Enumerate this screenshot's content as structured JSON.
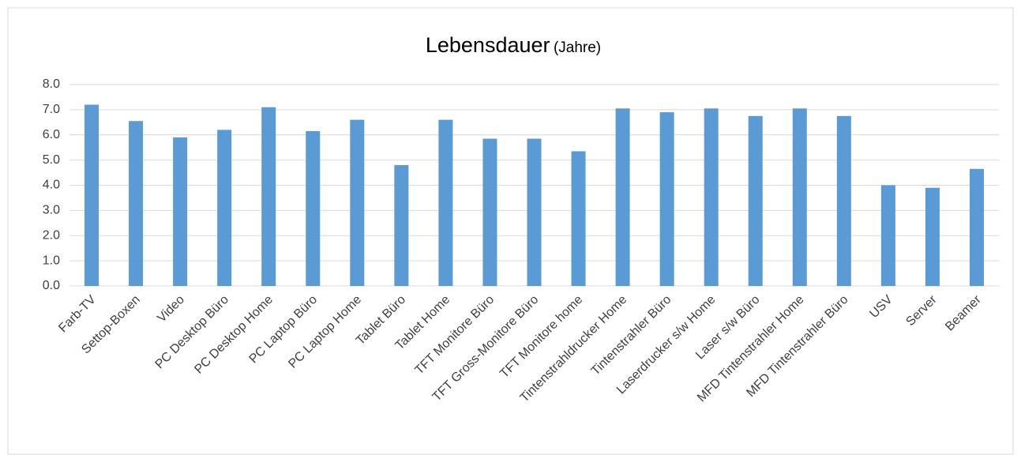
{
  "chart_data": {
    "type": "bar",
    "title": "Lebensdauer",
    "subtitle": "(Jahre)",
    "categories": [
      "Farb-TV",
      "Settop-Boxen",
      "Video",
      "PC Desktop Büro",
      "PC Desktop Home",
      "PC Laptop Büro",
      "PC Laptop Home",
      "Tablet Büro",
      "Tablet Home",
      "TFT Monitore Büro",
      "TFT Gross-Monitore Büro",
      "TFT Monitore home",
      "Tintenstrahldrucker Home",
      "Tintenstrahler Büro",
      "Laserdrucker s/w Home",
      "Laser s/w Büro",
      "MFD Tintenstrahler Home",
      "MFD Tintenstrahler Büro",
      "USV",
      "Server",
      "Beamer"
    ],
    "values": [
      7.2,
      6.55,
      5.9,
      6.2,
      7.1,
      6.15,
      6.6,
      4.8,
      6.6,
      5.85,
      5.85,
      5.35,
      7.05,
      6.9,
      7.05,
      6.75,
      7.05,
      6.75,
      4.0,
      3.9,
      4.65
    ],
    "color": "#5b9bd5",
    "ylim": [
      0,
      8
    ],
    "yticks": [
      {
        "value": 0,
        "label": "0.0"
      },
      {
        "value": 1,
        "label": "1.0"
      },
      {
        "value": 2,
        "label": "2.0"
      },
      {
        "value": 3,
        "label": "3.0"
      },
      {
        "value": 4,
        "label": "4.0"
      },
      {
        "value": 5,
        "label": "5.0"
      },
      {
        "value": 6,
        "label": "6.0"
      },
      {
        "value": 7,
        "label": "7.0"
      },
      {
        "value": 8,
        "label": "8.0"
      }
    ],
    "grid": true
  }
}
